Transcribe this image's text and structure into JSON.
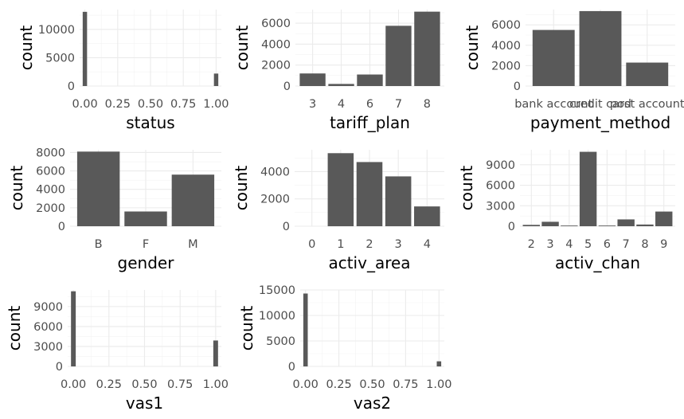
{
  "figure": {
    "bar_color": "#595959",
    "grid_color": "#ebebeb",
    "background": "#ffffff"
  },
  "chart_data": [
    {
      "type": "bar",
      "xlabel": "status",
      "ylabel": "count",
      "x_scale": "continuous",
      "xlim": [
        -0.04,
        1.04
      ],
      "x_ticks": [
        0,
        0.25,
        0.5,
        0.75,
        1
      ],
      "x_tick_labels": [
        "0.00",
        "0.25",
        "0.50",
        "0.75",
        "1.00"
      ],
      "bar_width": 0.0333,
      "x": [
        0,
        1
      ],
      "values": [
        13100,
        2200
      ],
      "ylim": [
        0,
        13500
      ],
      "y_ticks": [
        0,
        5000,
        10000
      ],
      "y_tick_labels": [
        "0",
        "5000",
        "10000"
      ],
      "grid": true
    },
    {
      "type": "bar",
      "xlabel": "tariff_plan",
      "ylabel": "count",
      "x_scale": "discrete",
      "categories": [
        "3",
        "4",
        "6",
        "7",
        "8"
      ],
      "values": [
        1200,
        200,
        1100,
        5750,
        7100
      ],
      "ylim": [
        0,
        7300
      ],
      "y_ticks": [
        0,
        2000,
        4000,
        6000
      ],
      "y_tick_labels": [
        "0",
        "2000",
        "4000",
        "6000"
      ],
      "grid": true
    },
    {
      "type": "bar",
      "xlabel": "payment_method",
      "ylabel": "count",
      "x_scale": "discrete",
      "categories": [
        "bank account",
        "credit card",
        "post account"
      ],
      "values": [
        5500,
        7350,
        2300
      ],
      "ylim": [
        0,
        7500
      ],
      "y_ticks": [
        0,
        2000,
        4000,
        6000
      ],
      "y_tick_labels": [
        "0",
        "2000",
        "4000",
        "6000"
      ],
      "grid": true
    },
    {
      "type": "bar",
      "xlabel": "gender",
      "ylabel": "count",
      "x_scale": "discrete",
      "categories": [
        "B",
        "F",
        "M"
      ],
      "values": [
        8100,
        1600,
        5600
      ],
      "ylim": [
        0,
        8300
      ],
      "y_ticks": [
        0,
        2000,
        4000,
        6000,
        8000
      ],
      "y_tick_labels": [
        "0",
        "2000",
        "4000",
        "6000",
        "8000"
      ],
      "grid": true
    },
    {
      "type": "bar",
      "xlabel": "activ_area",
      "ylabel": "count",
      "x_scale": "discrete",
      "categories": [
        "0",
        "1",
        "2",
        "3",
        "4"
      ],
      "values": [
        0,
        5350,
        4700,
        3650,
        1450
      ],
      "ylim": [
        0,
        5600
      ],
      "y_ticks": [
        0,
        2000,
        4000
      ],
      "y_tick_labels": [
        "0",
        "2000",
        "4000"
      ],
      "grid": true
    },
    {
      "type": "bar",
      "xlabel": "activ_chan",
      "ylabel": "count",
      "x_scale": "discrete",
      "categories": [
        "2",
        "3",
        "4",
        "5",
        "6",
        "7",
        "8",
        "9"
      ],
      "values": [
        200,
        650,
        100,
        10900,
        100,
        1000,
        250,
        2150
      ],
      "ylim": [
        0,
        11200
      ],
      "y_ticks": [
        0,
        3000,
        6000,
        9000
      ],
      "y_tick_labels": [
        "0",
        "3000",
        "6000",
        "9000"
      ],
      "grid": true
    },
    {
      "type": "bar",
      "xlabel": "vas1",
      "ylabel": "count",
      "x_scale": "continuous",
      "xlim": [
        -0.04,
        1.04
      ],
      "x_ticks": [
        0,
        0.25,
        0.5,
        0.75,
        1
      ],
      "x_tick_labels": [
        "0.00",
        "0.25",
        "0.50",
        "0.75",
        "1.00"
      ],
      "bar_width": 0.0333,
      "x": [
        0,
        1
      ],
      "values": [
        11300,
        3900
      ],
      "ylim": [
        0,
        11500
      ],
      "y_ticks": [
        0,
        3000,
        6000,
        9000
      ],
      "y_tick_labels": [
        "0",
        "3000",
        "6000",
        "9000"
      ],
      "grid": true
    },
    {
      "type": "bar",
      "xlabel": "vas2",
      "ylabel": "count",
      "x_scale": "continuous",
      "xlim": [
        -0.04,
        1.04
      ],
      "x_ticks": [
        0,
        0.25,
        0.5,
        0.75,
        1
      ],
      "x_tick_labels": [
        "0.00",
        "0.25",
        "0.50",
        "0.75",
        "1.00"
      ],
      "bar_width": 0.0333,
      "x": [
        0,
        1
      ],
      "values": [
        14300,
        1000
      ],
      "ylim": [
        0,
        15000
      ],
      "y_ticks": [
        0,
        5000,
        10000,
        15000
      ],
      "y_tick_labels": [
        "0",
        "5000",
        "10000",
        "15000"
      ],
      "grid": true
    }
  ]
}
